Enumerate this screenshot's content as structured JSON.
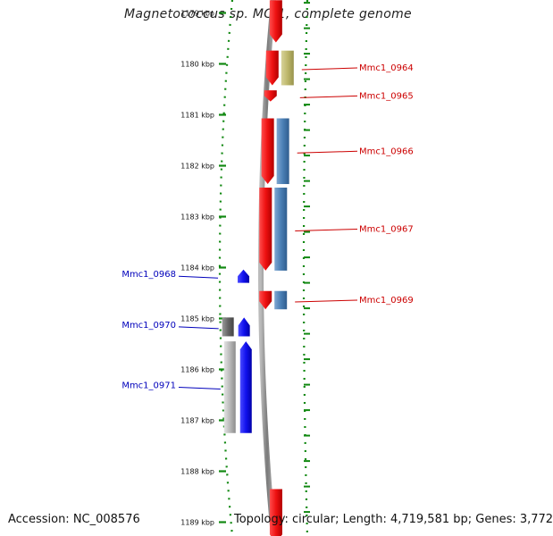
{
  "title": "Magnetococcus sp. MC-1, complete genome",
  "footer": {
    "accession": "Accession: NC_008576",
    "summary": "Topology: circular; Length: 4,719,581 bp; Genes: 3,772"
  },
  "colors": {
    "forward": "#ee1111",
    "reverse": "#1111ee",
    "forward_label": "#cc0000",
    "reverse_label": "#0000bb",
    "ruler": "#118811",
    "backbone": "#888888",
    "steelblue": "#4a7fb5",
    "khaki": "#bdb76b",
    "gray": "#999999"
  },
  "ruler_labels": [
    "1179 kbp",
    "1180 kbp",
    "1181 kbp",
    "1182 kbp",
    "1183 kbp",
    "1184 kbp",
    "1185 kbp",
    "1186 kbp",
    "1187 kbp",
    "1188 kbp",
    "1189 kbp"
  ],
  "genes": [
    {
      "strand": "forward",
      "start_kbp": 1178.75,
      "end_kbp": 1179.58,
      "color": "#ee1111"
    },
    {
      "strand": "forward",
      "start_kbp": 1179.74,
      "end_kbp": 1180.42,
      "color": "#ee1111",
      "label": "Mmc1_0964",
      "partner_color": "#bdb76b"
    },
    {
      "strand": "forward",
      "start_kbp": 1180.52,
      "end_kbp": 1180.74,
      "color": "#ee1111",
      "label": "Mmc1_0965"
    },
    {
      "strand": "forward",
      "start_kbp": 1181.07,
      "end_kbp": 1182.36,
      "color": "#ee1111",
      "label": "Mmc1_0966",
      "partner_color": "#4a7fb5"
    },
    {
      "strand": "forward",
      "start_kbp": 1182.43,
      "end_kbp": 1184.06,
      "color": "#ee1111",
      "label": "Mmc1_0967",
      "partner_color": "#4a7fb5"
    },
    {
      "strand": "forward",
      "start_kbp": 1184.46,
      "end_kbp": 1184.82,
      "color": "#ee1111",
      "label": "Mmc1_0969",
      "partner_color": "#4a7fb5"
    },
    {
      "strand": "forward",
      "start_kbp": 1188.35,
      "end_kbp": 1189.4,
      "color": "#ee1111"
    },
    {
      "strand": "reverse",
      "start_kbp": 1184.04,
      "end_kbp": 1184.3,
      "color": "#1111ee",
      "label": "Mmc1_0968"
    },
    {
      "strand": "reverse",
      "start_kbp": 1184.98,
      "end_kbp": 1185.35,
      "color": "#1111ee",
      "label": "Mmc1_0970",
      "partner_color": "#666666"
    },
    {
      "strand": "reverse",
      "start_kbp": 1185.45,
      "end_kbp": 1187.25,
      "color": "#1111ee",
      "label": "Mmc1_0971",
      "partner_color": "#999999"
    }
  ]
}
